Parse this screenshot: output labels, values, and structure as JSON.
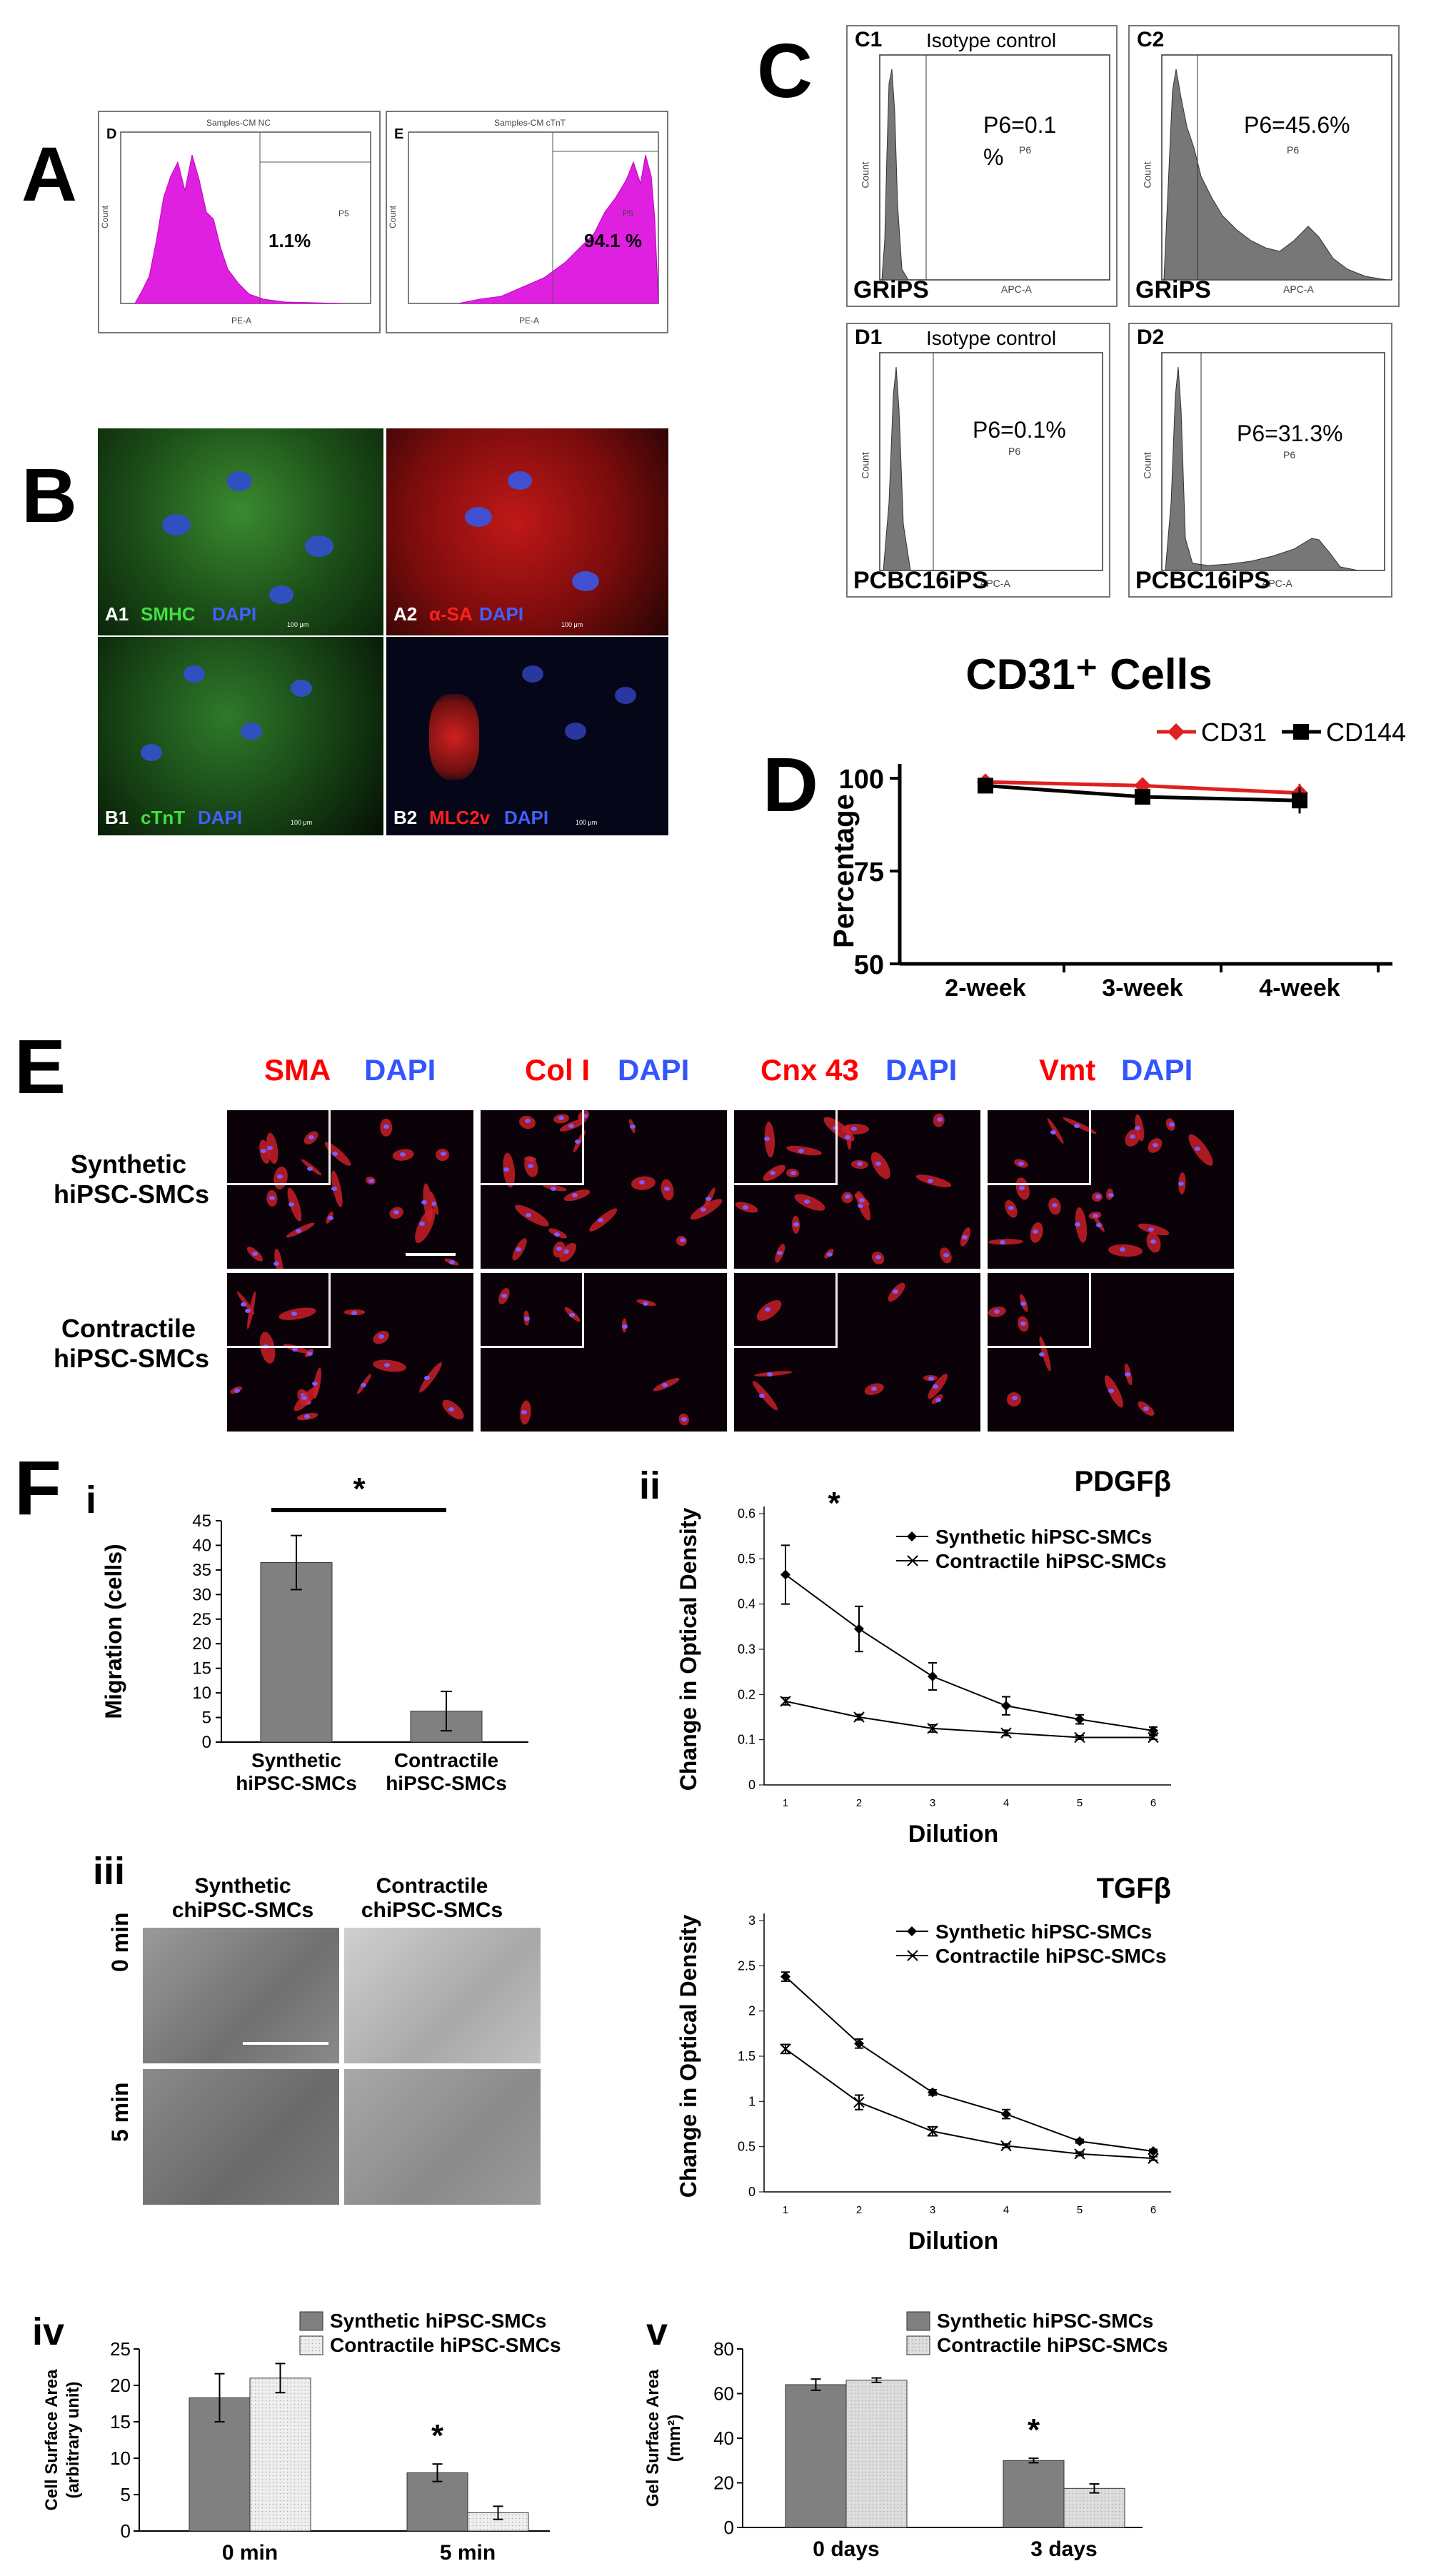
{
  "panel_letters": {
    "A": "A",
    "B": "B",
    "C": "C",
    "D": "D",
    "E": "E",
    "F": "F"
  },
  "panel_a": {
    "plots": [
      {
        "id": "D",
        "title": "Samples-CM NC",
        "percent": "1.1%",
        "gate": "P5",
        "xlabel": "PE-A",
        "ylabel": "Count"
      },
      {
        "id": "E",
        "title": "Samples-CM cTnT",
        "percent": "94.1 %",
        "gate": "P5",
        "xlabel": "PE-A",
        "ylabel": "Count"
      }
    ],
    "color": "#e020e0"
  },
  "panel_b": {
    "images": [
      {
        "id": "A1",
        "marker": "SMHC",
        "dapi": "DAPI",
        "scale": "100 μm"
      },
      {
        "id": "A2",
        "marker": "α-SA",
        "dapi": "DAPI",
        "scale": "100 μm"
      },
      {
        "id": "B1",
        "marker": "cTnT",
        "dapi": "DAPI",
        "scale": "100 μm"
      },
      {
        "id": "B2",
        "marker": "MLC2v",
        "dapi": "DAPI",
        "scale": "100 μm"
      }
    ]
  },
  "panel_c": {
    "plots": [
      {
        "id": "C1",
        "heading": "Isotype control",
        "value": "P6=0.1",
        "value2": "%",
        "gate": "P6",
        "cell_line": "GRiPS",
        "xlabel": "APC-A",
        "ylabel": "Count"
      },
      {
        "id": "C2",
        "heading": "",
        "value": "P6=45.6%",
        "value2": "",
        "gate": "P6",
        "cell_line": "GRiPS",
        "xlabel": "APC-A",
        "ylabel": "Count"
      },
      {
        "id": "D1",
        "heading": "Isotype control",
        "value": "P6=0.1%",
        "value2": "",
        "gate": "P6",
        "cell_line": "PCBC16iPS",
        "xlabel": "APC-A",
        "ylabel": "Count"
      },
      {
        "id": "D2",
        "heading": "",
        "value": "P6=31.3%",
        "value2": "",
        "gate": "P6",
        "cell_line": "PCBC16iPS",
        "xlabel": "APC-A",
        "ylabel": "Count"
      }
    ]
  },
  "panel_e": {
    "stains": [
      {
        "marker": "SMA",
        "dapi": "DAPI"
      },
      {
        "marker": "Col I",
        "dapi": "DAPI"
      },
      {
        "marker": "Cnx 43",
        "dapi": "DAPI"
      },
      {
        "marker": "Vmt",
        "dapi": "DAPI"
      }
    ],
    "rows": [
      {
        "line1": "Synthetic",
        "line2": "hiPSC-SMCs"
      },
      {
        "line1": "Contractile",
        "line2": "hiPSC-SMCs"
      }
    ],
    "marker_color": "#ff0000",
    "dapi_color": "#3355ff"
  },
  "panel_f": {
    "sub_labels": {
      "i": "i",
      "ii": "ii",
      "iii": "iii",
      "iv": "iv",
      "v": "v"
    },
    "iii": {
      "col1_line1": "Synthetic",
      "col1_line2": "chiPSC-SMCs",
      "col2_line1": "Contractile",
      "col2_line2": "chiPSC-SMCs",
      "row1": "0 min",
      "row2": "5 min"
    }
  },
  "chart_data": [
    {
      "id": "D",
      "type": "line",
      "title": "CD31⁺ Cells",
      "ylabel": "Percentage",
      "categories": [
        "2-week",
        "3-week",
        "4-week"
      ],
      "ylim": [
        50,
        100
      ],
      "yticks": [
        "50",
        "75",
        "100"
      ],
      "series": [
        {
          "name": "CD31",
          "values": [
            99,
            98,
            96
          ],
          "errors": [
            0.8,
            0.8,
            2.5
          ],
          "color": "#e02020",
          "marker": "diamond"
        },
        {
          "name": "CD144",
          "values": [
            98,
            95,
            94
          ],
          "errors": [
            1.5,
            1.2,
            3.5
          ],
          "color": "#000000",
          "marker": "square"
        }
      ]
    },
    {
      "id": "F-i",
      "type": "bar",
      "ylabel": "Migration (cells)",
      "categories": [
        [
          "Synthetic",
          "hiPSC-SMCs"
        ],
        [
          "Contractile",
          "hiPSC-SMCs"
        ]
      ],
      "values": [
        36.5,
        6.3
      ],
      "errors": [
        5.5,
        4.0
      ],
      "ylim": [
        0,
        45
      ],
      "yticks": [
        "0",
        "5",
        "10",
        "15",
        "20",
        "25",
        "30",
        "35",
        "40",
        "45"
      ],
      "significance": "*",
      "color": "#808080"
    },
    {
      "id": "F-ii-PDGF",
      "type": "line",
      "title": "PDGFβ",
      "xlabel": "Dilution",
      "ylabel": "Change in Optical Density",
      "x": [
        1,
        2,
        3,
        4,
        5,
        6
      ],
      "ylim": [
        0,
        0.6
      ],
      "yticks": [
        "0",
        "0.1",
        "0.2",
        "0.3",
        "0.4",
        "0.5",
        "0.6"
      ],
      "significance": "*",
      "series": [
        {
          "name": "Synthetic hiPSC-SMCs",
          "values": [
            0.465,
            0.345,
            0.24,
            0.175,
            0.145,
            0.12
          ],
          "errors": [
            0.065,
            0.05,
            0.03,
            0.02,
            0.01,
            0.008
          ],
          "marker": "diamond"
        },
        {
          "name": "Contractile hiPSC-SMCs",
          "values": [
            0.185,
            0.15,
            0.125,
            0.115,
            0.105,
            0.105
          ],
          "errors": [
            0.008,
            0.006,
            0.008,
            0.006,
            0.004,
            0.004
          ],
          "marker": "x"
        }
      ]
    },
    {
      "id": "F-ii-TGF",
      "type": "line",
      "title": "TGFβ",
      "xlabel": "Dilution",
      "ylabel": "Change in Optical Density",
      "x": [
        1,
        2,
        3,
        4,
        5,
        6
      ],
      "ylim": [
        0,
        3
      ],
      "yticks": [
        "0",
        "0.5",
        "1",
        "1.5",
        "2",
        "2.5",
        "3"
      ],
      "series": [
        {
          "name": "Synthetic hiPSC-SMCs",
          "values": [
            2.38,
            1.64,
            1.1,
            0.86,
            0.56,
            0.45
          ],
          "errors": [
            0.05,
            0.05,
            0.03,
            0.05,
            0.02,
            0.02
          ],
          "marker": "diamond"
        },
        {
          "name": "Contractile hiPSC-SMCs",
          "values": [
            1.58,
            0.99,
            0.67,
            0.51,
            0.42,
            0.37
          ],
          "errors": [
            0.05,
            0.08,
            0.05,
            0.02,
            0.02,
            0.02
          ],
          "marker": "x"
        }
      ]
    },
    {
      "id": "F-iv",
      "type": "bar",
      "ylabel": "Cell Surface Area (arbitrary unit)",
      "ylabel_line1": "Cell Surface Area",
      "ylabel_line2": "(arbitrary unit)",
      "categories": [
        "0 min",
        "5 min"
      ],
      "ylim": [
        0,
        25
      ],
      "yticks": [
        "0",
        "5",
        "10",
        "15",
        "20",
        "25"
      ],
      "significance": "*",
      "series": [
        {
          "name": "Synthetic hiPSC-SMCs",
          "values": [
            18.3,
            8.0
          ],
          "errors": [
            3.3,
            1.2
          ],
          "color": "#808080"
        },
        {
          "name": "Contractile hiPSC-SMCs",
          "values": [
            21.0,
            2.5
          ],
          "errors": [
            2.0,
            0.9
          ],
          "color": "#eeeeee"
        }
      ]
    },
    {
      "id": "F-v",
      "type": "bar",
      "ylabel": "Gel Surface Area (mm²)",
      "ylabel_line1": "Gel Surface Area",
      "ylabel_line2": "(mm²)",
      "categories": [
        "0 days",
        "3 days"
      ],
      "ylim": [
        0,
        80
      ],
      "yticks": [
        "0",
        "20",
        "40",
        "60",
        "80"
      ],
      "significance": "*",
      "series": [
        {
          "name": "Synthetic hiPSC-SMCs",
          "values": [
            64,
            30
          ],
          "errors": [
            2.5,
            1.0
          ],
          "color": "#808080"
        },
        {
          "name": "Contractile hiPSC-SMCs",
          "values": [
            66,
            17.5
          ],
          "errors": [
            1.0,
            2.0
          ],
          "color": "#dddddd"
        }
      ]
    }
  ]
}
